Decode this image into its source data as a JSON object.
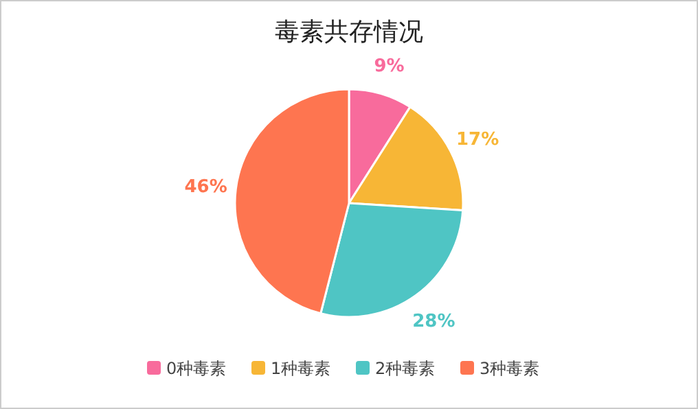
{
  "chart_data": {
    "type": "pie",
    "title": "毒素共存情况",
    "categories": [
      "0种毒素",
      "1种毒素",
      "2种毒素",
      "3种毒素"
    ],
    "values": [
      9,
      17,
      28,
      46
    ],
    "value_labels": [
      "9%",
      "17%",
      "28%",
      "46%"
    ],
    "colors": [
      "#f86b9c",
      "#f7b636",
      "#4fc5c4",
      "#fe7550"
    ],
    "legend": "bottom"
  }
}
